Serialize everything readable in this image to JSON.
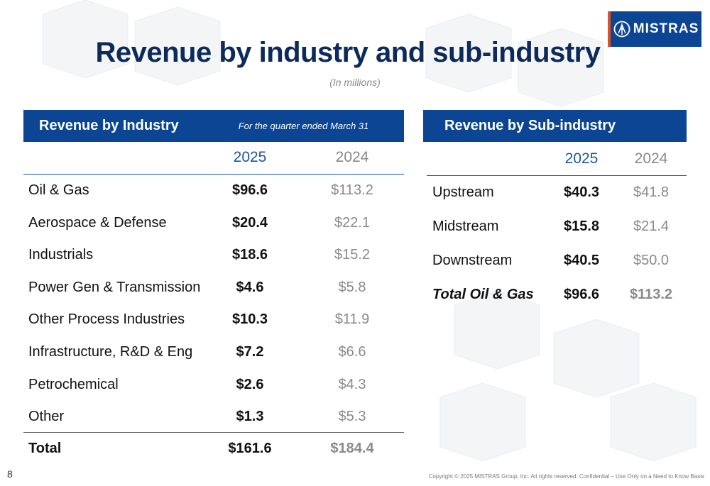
{
  "logo": {
    "text": "MISTRAS",
    "brand_color": "#0b4593",
    "accent_color": "#d9532b"
  },
  "title": "Revenue by industry and sub-industry",
  "subtitle": "(In millions)",
  "industry": {
    "header": "Revenue by Industry",
    "note": "For the quarter ended March 31",
    "col_current": "2025",
    "col_prior": "2024",
    "rows": [
      {
        "label": "Oil & Gas",
        "current": "$96.6",
        "prior": "$113.2"
      },
      {
        "label": "Aerospace & Defense",
        "current": "$20.4",
        "prior": "$22.1"
      },
      {
        "label": "Industrials",
        "current": "$18.6",
        "prior": "$15.2"
      },
      {
        "label": "Power Gen & Transmission",
        "current": "$4.6",
        "prior": "$5.8"
      },
      {
        "label": "Other Process Industries",
        "current": "$10.3",
        "prior": "$11.9"
      },
      {
        "label": "Infrastructure, R&D & Eng",
        "current": "$7.2",
        "prior": "$6.6"
      },
      {
        "label": "Petrochemical",
        "current": "$2.6",
        "prior": "$4.3"
      },
      {
        "label": "Other",
        "current": "$1.3",
        "prior": "$5.3"
      }
    ],
    "total": {
      "label": "Total",
      "current": "$161.6",
      "prior": "$184.4"
    }
  },
  "subindustry": {
    "header": "Revenue by Sub-industry",
    "col_current": "2025",
    "col_prior": "2024",
    "rows": [
      {
        "label": "Upstream",
        "current": "$40.3",
        "prior": "$41.8"
      },
      {
        "label": "Midstream",
        "current": "$15.8",
        "prior": "$21.4"
      },
      {
        "label": "Downstream",
        "current": "$40.5",
        "prior": "$50.0"
      }
    ],
    "total": {
      "label": "Total Oil &  Gas",
      "current": "$96.6",
      "prior": "$113.2"
    }
  },
  "page_number": "8",
  "footer": "Copyright © 2025 MISTRAS Group, Inc. All rights reserved. Confidential – Use Only on a Need to Know Basis"
}
